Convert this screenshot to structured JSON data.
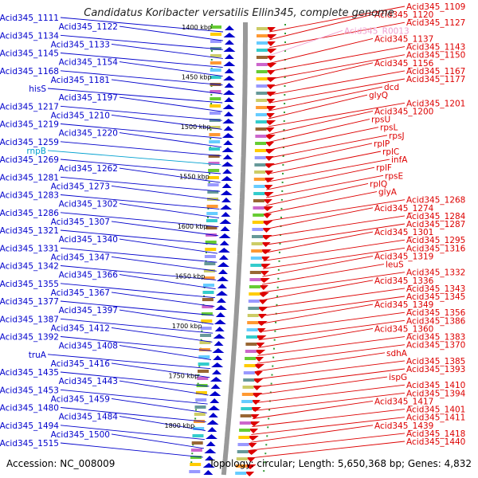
{
  "title": "Candidatus Koribacter versatilis Ellin345, complete genome",
  "accession": "Accession: NC_008009",
  "topology": "Topology: circular; Length: 5,650,368 bp; Genes: 4,832",
  "colors": {
    "forward": "#0000cc",
    "reverse": "#dd0000",
    "rna_forward": "#00a0d0",
    "rna_reverse": "#f0a0d0",
    "axis": "#999999",
    "gc_dots": "#339933"
  },
  "scale_labels": [
    "1400 kbp",
    "1450 kbp",
    "1500 kbp",
    "1550 kbp",
    "1600 kbp",
    "1650 kbp",
    "1700 kbp",
    "1750 kbp",
    "1800 kbp"
  ],
  "left_labels": [
    {
      "text": "Acid345_1111",
      "color": "#0000cc"
    },
    {
      "text": "Acid345_1122",
      "color": "#0000cc"
    },
    {
      "text": "Acid345_1134",
      "color": "#0000cc"
    },
    {
      "text": "Acid345_1133",
      "color": "#0000cc"
    },
    {
      "text": "Acid345_1145",
      "color": "#0000cc"
    },
    {
      "text": "Acid345_1154",
      "color": "#0000cc"
    },
    {
      "text": "Acid345_1168",
      "color": "#0000cc"
    },
    {
      "text": "Acid345_1181",
      "color": "#0000cc"
    },
    {
      "text": "hisS",
      "color": "#0000cc"
    },
    {
      "text": "Acid345_1197",
      "color": "#0000cc"
    },
    {
      "text": "Acid345_1217",
      "color": "#0000cc"
    },
    {
      "text": "Acid345_1210",
      "color": "#0000cc"
    },
    {
      "text": "Acid345_1219",
      "color": "#0000cc"
    },
    {
      "text": "Acid345_1220",
      "color": "#0000cc"
    },
    {
      "text": "Acid345_1259",
      "color": "#0000cc"
    },
    {
      "text": "rnpB",
      "color": "#00a0d0"
    },
    {
      "text": "Acid345_1269",
      "color": "#0000cc"
    },
    {
      "text": "Acid345_1262",
      "color": "#0000cc"
    },
    {
      "text": "Acid345_1281",
      "color": "#0000cc"
    },
    {
      "text": "Acid345_1273",
      "color": "#0000cc"
    },
    {
      "text": "Acid345_1283",
      "color": "#0000cc"
    },
    {
      "text": "Acid345_1302",
      "color": "#0000cc"
    },
    {
      "text": "Acid345_1286",
      "color": "#0000cc"
    },
    {
      "text": "Acid345_1307",
      "color": "#0000cc"
    },
    {
      "text": "Acid345_1321",
      "color": "#0000cc"
    },
    {
      "text": "Acid345_1340",
      "color": "#0000cc"
    },
    {
      "text": "Acid345_1331",
      "color": "#0000cc"
    },
    {
      "text": "Acid345_1347",
      "color": "#0000cc"
    },
    {
      "text": "Acid345_1342",
      "color": "#0000cc"
    },
    {
      "text": "Acid345_1366",
      "color": "#0000cc"
    },
    {
      "text": "Acid345_1355",
      "color": "#0000cc"
    },
    {
      "text": "Acid345_1367",
      "color": "#0000cc"
    },
    {
      "text": "Acid345_1377",
      "color": "#0000cc"
    },
    {
      "text": "Acid345_1397",
      "color": "#0000cc"
    },
    {
      "text": "Acid345_1387",
      "color": "#0000cc"
    },
    {
      "text": "Acid345_1412",
      "color": "#0000cc"
    },
    {
      "text": "Acid345_1392",
      "color": "#0000cc"
    },
    {
      "text": "Acid345_1408",
      "color": "#0000cc"
    },
    {
      "text": "truA",
      "color": "#0000cc"
    },
    {
      "text": "Acid345_1416",
      "color": "#0000cc"
    },
    {
      "text": "Acid345_1435",
      "color": "#0000cc"
    },
    {
      "text": "Acid345_1443",
      "color": "#0000cc"
    },
    {
      "text": "Acid345_1453",
      "color": "#0000cc"
    },
    {
      "text": "Acid345_1459",
      "color": "#0000cc"
    },
    {
      "text": "Acid345_1480",
      "color": "#0000cc"
    },
    {
      "text": "Acid345_1484",
      "color": "#0000cc"
    },
    {
      "text": "Acid345_1494",
      "color": "#0000cc"
    },
    {
      "text": "Acid345_1500",
      "color": "#0000cc"
    },
    {
      "text": "Acid345_1515",
      "color": "#0000cc"
    }
  ],
  "right_labels": [
    {
      "text": "Acid345_1109",
      "color": "#dd0000"
    },
    {
      "text": "Acid345_1120",
      "color": "#dd0000"
    },
    {
      "text": "Acid345_1127",
      "color": "#dd0000"
    },
    {
      "text": "Acid345_R0013",
      "color": "#f0a0d0"
    },
    {
      "text": "Acid345_1137",
      "color": "#dd0000"
    },
    {
      "text": "Acid345_1143",
      "color": "#dd0000"
    },
    {
      "text": "Acid345_1150",
      "color": "#dd0000"
    },
    {
      "text": "Acid345_1156",
      "color": "#dd0000"
    },
    {
      "text": "Acid345_1167",
      "color": "#dd0000"
    },
    {
      "text": "Acid345_1177",
      "color": "#dd0000"
    },
    {
      "text": "dcd",
      "color": "#dd0000"
    },
    {
      "text": "glyQ",
      "color": "#dd0000"
    },
    {
      "text": "Acid345_1201",
      "color": "#dd0000"
    },
    {
      "text": "Acid345_1200",
      "color": "#dd0000"
    },
    {
      "text": "rpsU",
      "color": "#dd0000"
    },
    {
      "text": "rpsL",
      "color": "#dd0000"
    },
    {
      "text": "rpsJ",
      "color": "#dd0000"
    },
    {
      "text": "rplP",
      "color": "#dd0000"
    },
    {
      "text": "rplC",
      "color": "#dd0000"
    },
    {
      "text": "infA",
      "color": "#dd0000"
    },
    {
      "text": "rplF",
      "color": "#dd0000"
    },
    {
      "text": "rpsE",
      "color": "#dd0000"
    },
    {
      "text": "rplQ",
      "color": "#dd0000"
    },
    {
      "text": "glyA",
      "color": "#dd0000"
    },
    {
      "text": "Acid345_1268",
      "color": "#dd0000"
    },
    {
      "text": "Acid345_1274",
      "color": "#dd0000"
    },
    {
      "text": "Acid345_1284",
      "color": "#dd0000"
    },
    {
      "text": "Acid345_1287",
      "color": "#dd0000"
    },
    {
      "text": "Acid345_1301",
      "color": "#dd0000"
    },
    {
      "text": "Acid345_1295",
      "color": "#dd0000"
    },
    {
      "text": "Acid345_1316",
      "color": "#dd0000"
    },
    {
      "text": "Acid345_1319",
      "color": "#dd0000"
    },
    {
      "text": "leuS",
      "color": "#dd0000"
    },
    {
      "text": "Acid345_1332",
      "color": "#dd0000"
    },
    {
      "text": "Acid345_1336",
      "color": "#dd0000"
    },
    {
      "text": "Acid345_1343",
      "color": "#dd0000"
    },
    {
      "text": "Acid345_1345",
      "color": "#dd0000"
    },
    {
      "text": "Acid345_1349",
      "color": "#dd0000"
    },
    {
      "text": "Acid345_1356",
      "color": "#dd0000"
    },
    {
      "text": "Acid345_1386",
      "color": "#dd0000"
    },
    {
      "text": "Acid345_1360",
      "color": "#dd0000"
    },
    {
      "text": "Acid345_1383",
      "color": "#dd0000"
    },
    {
      "text": "Acid345_1370",
      "color": "#dd0000"
    },
    {
      "text": "sdhA",
      "color": "#dd0000"
    },
    {
      "text": "Acid345_1385",
      "color": "#dd0000"
    },
    {
      "text": "Acid345_1393",
      "color": "#dd0000"
    },
    {
      "text": "ispG",
      "color": "#dd0000"
    },
    {
      "text": "Acid345_1410",
      "color": "#dd0000"
    },
    {
      "text": "Acid345_1394",
      "color": "#dd0000"
    },
    {
      "text": "Acid345_1417",
      "color": "#dd0000"
    },
    {
      "text": "Acid345_1401",
      "color": "#dd0000"
    },
    {
      "text": "Acid345_1411",
      "color": "#dd0000"
    },
    {
      "text": "Acid345_1439",
      "color": "#dd0000"
    },
    {
      "text": "Acid345_1418",
      "color": "#dd0000"
    },
    {
      "text": "Acid345_1440",
      "color": "#dd0000"
    }
  ]
}
